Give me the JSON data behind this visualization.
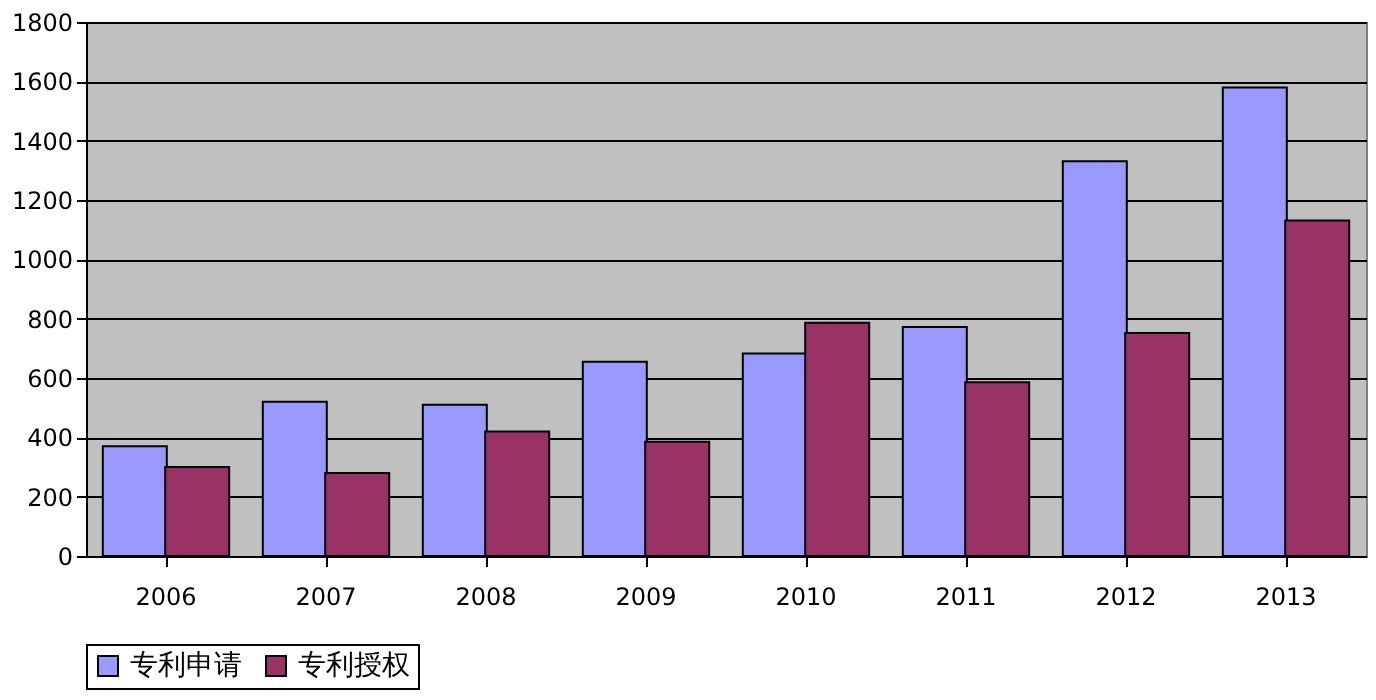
{
  "chart_data": {
    "type": "bar",
    "categories": [
      "2006",
      "2007",
      "2008",
      "2009",
      "2010",
      "2011",
      "2012",
      "2013"
    ],
    "series": [
      {
        "name": "专利申请",
        "color": "#9999ff",
        "values": [
          370,
          520,
          510,
          655,
          683,
          772,
          1331,
          1579
        ]
      },
      {
        "name": "专利授权",
        "color": "#993366",
        "values": [
          300,
          280,
          420,
          385,
          786,
          586,
          752,
          1131
        ]
      }
    ],
    "ylim": [
      0,
      1800
    ],
    "yticks": [
      0,
      200,
      400,
      600,
      800,
      1000,
      1200,
      1400,
      1600,
      1800
    ],
    "grid": "y",
    "legend": "bottom"
  }
}
